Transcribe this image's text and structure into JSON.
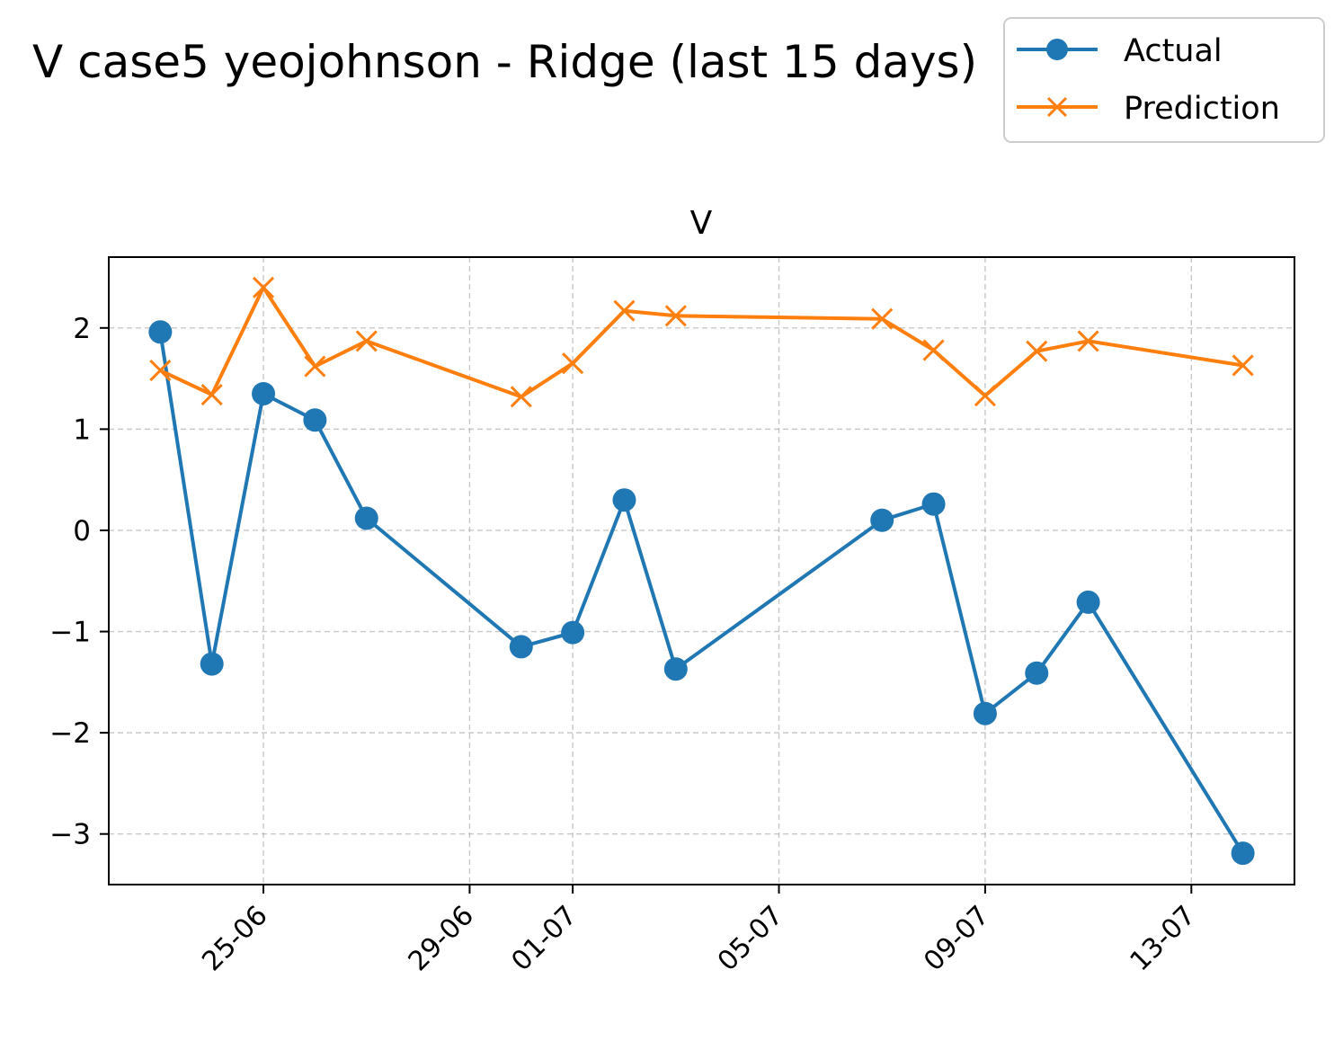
{
  "figure": {
    "suptitle": "V case5 yeojohnson - Ridge (last 15 days)"
  },
  "chart_data": {
    "type": "line",
    "title": "V",
    "xlabel": "",
    "ylabel": "",
    "x_axis_kind": "date",
    "x_tick_format": "DD-MM",
    "x": [
      "2025-06-23",
      "2025-06-24",
      "2025-06-25",
      "2025-06-26",
      "2025-06-27",
      "2025-06-30",
      "2025-07-01",
      "2025-07-02",
      "2025-07-03",
      "2025-07-07",
      "2025-07-08",
      "2025-07-09",
      "2025-07-10",
      "2025-07-11",
      "2025-07-14"
    ],
    "xlim": [
      "2025-06-22",
      "2025-07-15"
    ],
    "x_ticks": [
      "2025-06-25",
      "2025-06-29",
      "2025-07-01",
      "2025-07-05",
      "2025-07-09",
      "2025-07-13"
    ],
    "x_tick_labels": [
      "25-06",
      "29-06",
      "01-07",
      "05-07",
      "09-07",
      "13-07"
    ],
    "ylim": [
      -3.5,
      2.7
    ],
    "y_ticks": [
      2,
      1,
      0,
      -1,
      -2,
      -3
    ],
    "y_tick_labels": [
      "2",
      "1",
      "0",
      "−1",
      "−2",
      "−3"
    ],
    "grid": true,
    "legend_position": "top-right",
    "series": [
      {
        "name": "Actual",
        "color": "#1f77b4",
        "marker": "circle",
        "values": [
          1.96,
          -1.32,
          1.35,
          1.09,
          0.12,
          -1.15,
          -1.01,
          0.3,
          -1.37,
          0.1,
          0.26,
          -1.81,
          -1.41,
          -0.71,
          -3.19
        ]
      },
      {
        "name": "Prediction",
        "color": "#ff7f0e",
        "marker": "x",
        "values": [
          1.58,
          1.34,
          2.4,
          1.62,
          1.87,
          1.32,
          1.65,
          2.17,
          2.12,
          2.09,
          1.78,
          1.33,
          1.77,
          1.87,
          1.63
        ]
      }
    ]
  }
}
